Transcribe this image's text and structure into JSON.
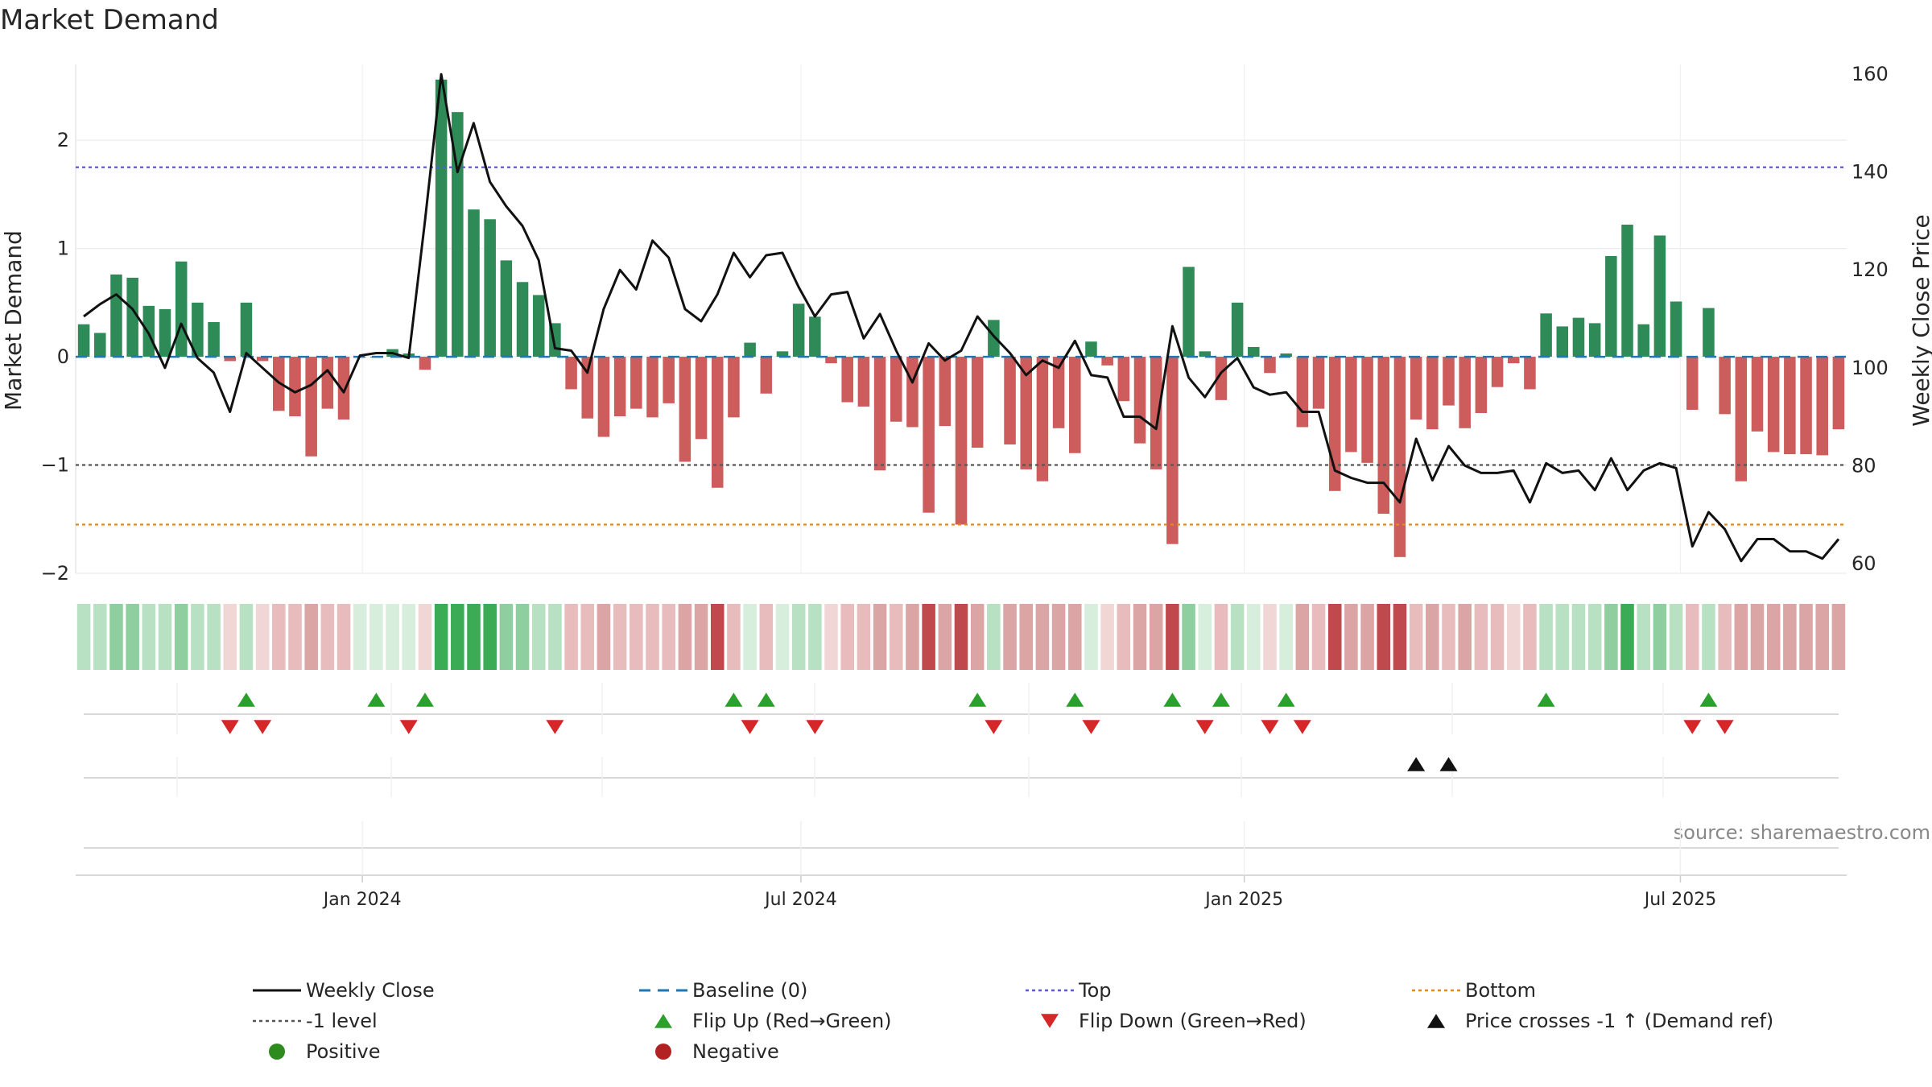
{
  "chart_data": {
    "type": "bar",
    "title": "Market Demand",
    "ylabel": "Market Demand",
    "y2label": "Weekly Close Price",
    "ylim": [
      -2.0,
      2.7
    ],
    "y2lim": [
      58,
      162
    ],
    "yticks": [
      -2,
      -1,
      0,
      1,
      2
    ],
    "y2ticks": [
      60,
      80,
      100,
      120,
      140,
      160
    ],
    "x_start": "2023-09-04",
    "x_end": "2025-09-08",
    "xticks": [
      {
        "date": "2024-01-01",
        "label": "Jan 2024"
      },
      {
        "date": "2024-07-01",
        "label": "Jul 2024"
      },
      {
        "date": "2025-01-01",
        "label": "Jan 2025"
      },
      {
        "date": "2025-07-01",
        "label": "Jul 2025"
      }
    ],
    "levels": {
      "top": 1.75,
      "bottom": -1.55,
      "minus_one": -1,
      "baseline": 0
    },
    "colors": {
      "positive": "#2e8b57",
      "negative": "#cd5c5c",
      "top_line": "#5b5bd6",
      "bottom_line": "#e08a1e",
      "minus_one_line": "#555555",
      "baseline": "#1f77b4",
      "flip_up": "#2ca02c",
      "flip_down": "#d62728",
      "price_cross": "#111111",
      "price": "#111111"
    },
    "series": [
      {
        "name": "Market Demand",
        "type": "bar",
        "values": [
          0.3,
          0.22,
          0.76,
          0.73,
          0.47,
          0.44,
          0.88,
          0.5,
          0.32,
          -0.04,
          0.5,
          -0.04,
          -0.5,
          -0.55,
          -0.92,
          -0.48,
          -0.58,
          0.0,
          0.0,
          0.07,
          0.03,
          -0.12,
          2.56,
          2.26,
          1.36,
          1.27,
          0.89,
          0.69,
          0.57,
          0.31,
          -0.3,
          -0.57,
          -0.74,
          -0.55,
          -0.48,
          -0.56,
          -0.43,
          -0.97,
          -0.76,
          -1.21,
          -0.56,
          0.13,
          -0.34,
          0.05,
          0.49,
          0.37,
          -0.06,
          -0.42,
          -0.46,
          -1.05,
          -0.6,
          -0.65,
          -1.44,
          -0.64,
          -1.55,
          -0.84,
          0.34,
          -0.81,
          -1.04,
          -1.15,
          -0.66,
          -0.89,
          0.14,
          -0.08,
          -0.41,
          -0.8,
          -1.04,
          -1.73,
          0.83,
          0.05,
          -0.4,
          0.5,
          0.09,
          -0.15,
          0.03,
          -0.65,
          -0.48,
          -1.24,
          -0.88,
          -0.98,
          -1.45,
          -1.85,
          -0.58,
          -0.67,
          -0.45,
          -0.66,
          -0.52,
          -0.28,
          -0.06,
          -0.3,
          0.4,
          0.28,
          0.36,
          0.31,
          0.93,
          1.22,
          0.3,
          1.12,
          0.51,
          -0.49,
          0.45,
          -0.53,
          -1.15,
          -0.69,
          -0.88,
          -0.9,
          -0.9,
          -0.91,
          -0.67
        ]
      },
      {
        "name": "Weekly Close",
        "type": "line",
        "axis": "right",
        "values": [
          110.5,
          113,
          115,
          112,
          107,
          100,
          109,
          102,
          99,
          91,
          103,
          100,
          97,
          95,
          96.5,
          99.5,
          95,
          102.5,
          103,
          103,
          102,
          130,
          160,
          140,
          150,
          138,
          133,
          129,
          122,
          104,
          103.5,
          99,
          112,
          120,
          116,
          126,
          122.5,
          112,
          109.5,
          115,
          123.5,
          118.5,
          123,
          123.5,
          116.5,
          110.5,
          115,
          115.5,
          106,
          111,
          103.5,
          97,
          105,
          101.5,
          103.5,
          110.5,
          106.5,
          103,
          98.5,
          101.5,
          100,
          105.5,
          98.5,
          98,
          90,
          90,
          87.5,
          108.5,
          98,
          94,
          99,
          102,
          96,
          94.5,
          95,
          91,
          91,
          79,
          77.5,
          76.5,
          76.5,
          72.5,
          85.5,
          77,
          84,
          80,
          78.5,
          78.5,
          79,
          72.5,
          80.5,
          78.5,
          79,
          75,
          81.5,
          75,
          79,
          80.5,
          79.5,
          63.5,
          70.5,
          67,
          60.5,
          65,
          65,
          62.5,
          62.5,
          61,
          65
        ]
      }
    ],
    "flip_up_weeks": [
      10,
      18,
      21,
      40,
      42,
      55,
      61,
      67,
      70,
      74,
      90,
      100
    ],
    "flip_down_weeks": [
      9,
      11,
      20,
      29,
      41,
      45,
      56,
      62,
      69,
      73,
      75,
      99,
      101
    ],
    "price_cross_weeks": [
      82,
      84
    ],
    "watermark": "source: sharemaestro.com",
    "legend": [
      {
        "label": "Weekly Close",
        "symbol": "line",
        "color": "#111111"
      },
      {
        "label": "Baseline (0)",
        "symbol": "dash",
        "color": "#1f77b4"
      },
      {
        "label": "Top",
        "symbol": "dot",
        "color": "#5b5bd6"
      },
      {
        "label": "Bottom",
        "symbol": "dot",
        "color": "#e08a1e"
      },
      {
        "label": "-1 level",
        "symbol": "dot",
        "color": "#555555"
      },
      {
        "label": "Flip Up (Red→Green)",
        "symbol": "tri-up",
        "color": "#2ca02c"
      },
      {
        "label": "Flip Down (Green→Red)",
        "symbol": "tri-down",
        "color": "#d62728"
      },
      {
        "label": "Price crosses -1 ↑ (Demand ref)",
        "symbol": "tri-up",
        "color": "#111111"
      },
      {
        "label": "Positive",
        "symbol": "circle",
        "color": "#2e8b1e"
      },
      {
        "label": "Negative",
        "symbol": "circle",
        "color": "#b22222"
      }
    ]
  }
}
